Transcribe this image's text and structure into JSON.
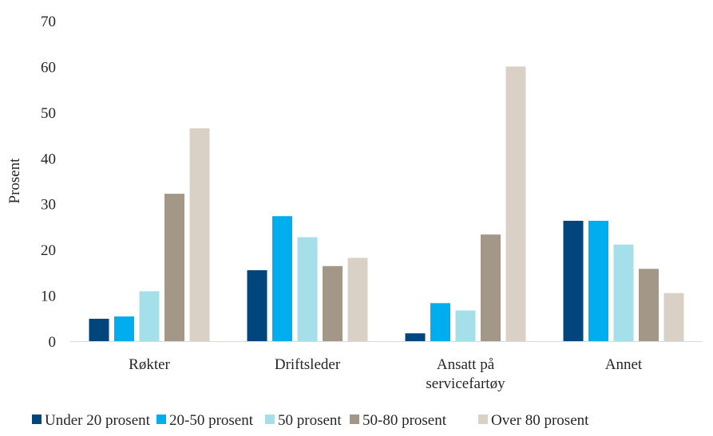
{
  "chart_data": {
    "type": "bar",
    "title": "",
    "xlabel": "",
    "ylabel": "Prosent",
    "ylim": [
      0,
      70
    ],
    "yticks": [
      0,
      10,
      20,
      30,
      40,
      50,
      60,
      70
    ],
    "grid": false,
    "legend_position": "bottom",
    "categories": [
      [
        "Røkter"
      ],
      [
        "Driftsleder"
      ],
      [
        "Ansatt på",
        "servicefartøy"
      ],
      [
        "Annet"
      ]
    ],
    "series": [
      {
        "name": "Under 20 prosent",
        "color": "#00457c",
        "values": [
          4.9,
          15.5,
          1.7,
          26.3
        ]
      },
      {
        "name": "20-50 prosent",
        "color": "#00adef",
        "values": [
          5.4,
          27.3,
          8.3,
          26.3
        ]
      },
      {
        "name": "50 prosent",
        "color": "#a4dfea",
        "values": [
          10.9,
          22.7,
          6.7,
          21.1
        ]
      },
      {
        "name": "50-80 prosent",
        "color": "#a39788",
        "values": [
          32.2,
          16.4,
          23.3,
          15.8
        ]
      },
      {
        "name": "Over 80 prosent",
        "color": "#d9d0c6",
        "values": [
          46.5,
          18.2,
          60.0,
          10.5
        ]
      }
    ]
  }
}
